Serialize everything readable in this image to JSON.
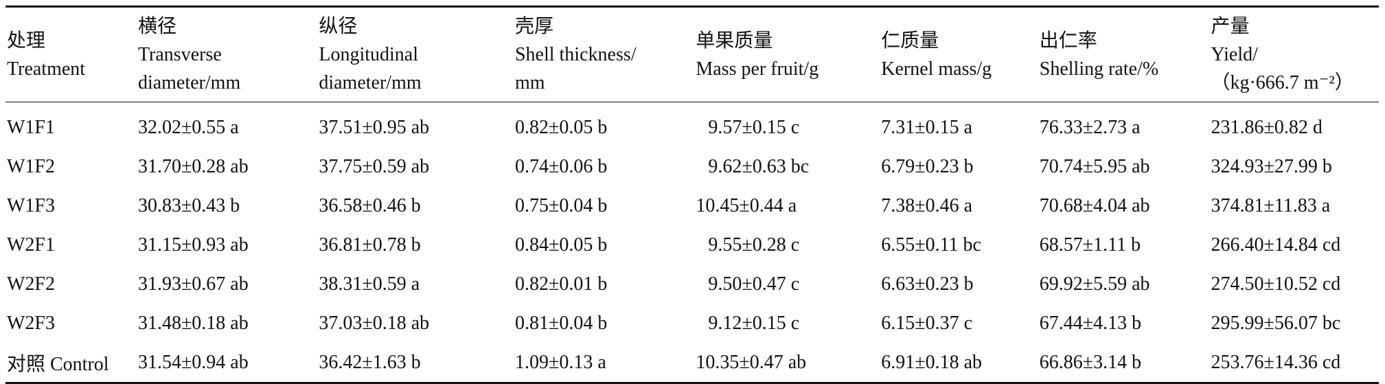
{
  "table": {
    "headers": [
      {
        "lines": [
          "处理",
          "Treatment"
        ]
      },
      {
        "lines": [
          "横径",
          "Transverse",
          "diameter/mm"
        ]
      },
      {
        "lines": [
          "纵径",
          "Longitudinal",
          "diameter/mm"
        ]
      },
      {
        "lines": [
          "壳厚",
          "Shell thickness/",
          "mm"
        ]
      },
      {
        "lines": [
          "单果质量",
          "Mass per fruit/g"
        ]
      },
      {
        "lines": [
          "仁质量",
          "Kernel mass/g"
        ]
      },
      {
        "lines": [
          "出仁率",
          "Shelling rate/%"
        ]
      },
      {
        "lines": [
          "产量",
          "Yield/",
          "（kg·666.7 m⁻²）"
        ]
      }
    ],
    "rows": [
      [
        "W1F1",
        "32.02±0.55 a",
        "37.51±0.95 ab",
        "0.82±0.05 b",
        "9.57±0.15 c",
        "7.31±0.15 a",
        "76.33±2.73 a",
        "231.86±0.82 d"
      ],
      [
        "W1F2",
        "31.70±0.28 ab",
        "37.75±0.59 ab",
        "0.74±0.06 b",
        "9.62±0.63 bc",
        "6.79±0.23 b",
        "70.74±5.95 ab",
        "324.93±27.99 b"
      ],
      [
        "W1F3",
        "30.83±0.43 b",
        "36.58±0.46 b",
        "0.75±0.04 b",
        "10.45±0.44 a",
        "7.38±0.46 a",
        "70.68±4.04 ab",
        "374.81±11.83 a"
      ],
      [
        "W2F1",
        "31.15±0.93 ab",
        "36.81±0.78 b",
        "0.84±0.05 b",
        "9.55±0.28 c",
        "6.55±0.11 bc",
        "68.57±1.11 b",
        "266.40±14.84 cd"
      ],
      [
        "W2F2",
        "31.93±0.67 ab",
        "38.31±0.59 a",
        "0.82±0.01 b",
        "9.50±0.47 c",
        "6.63±0.23 b",
        "69.92±5.59 ab",
        "274.50±10.52 cd"
      ],
      [
        "W2F3",
        "31.48±0.18 ab",
        "37.03±0.18 ab",
        "0.81±0.04 b",
        "9.12±0.15 c",
        "6.15±0.37 c",
        "67.44±4.13 b",
        "295.99±56.07 bc"
      ],
      [
        "对照 Control",
        "31.54±0.94 ab",
        "36.42±1.63 b",
        "1.09±0.13 a",
        "10.35±0.47 ab",
        "6.91±0.18 ab",
        "66.86±3.14 b",
        "253.76±14.36 cd"
      ]
    ]
  }
}
